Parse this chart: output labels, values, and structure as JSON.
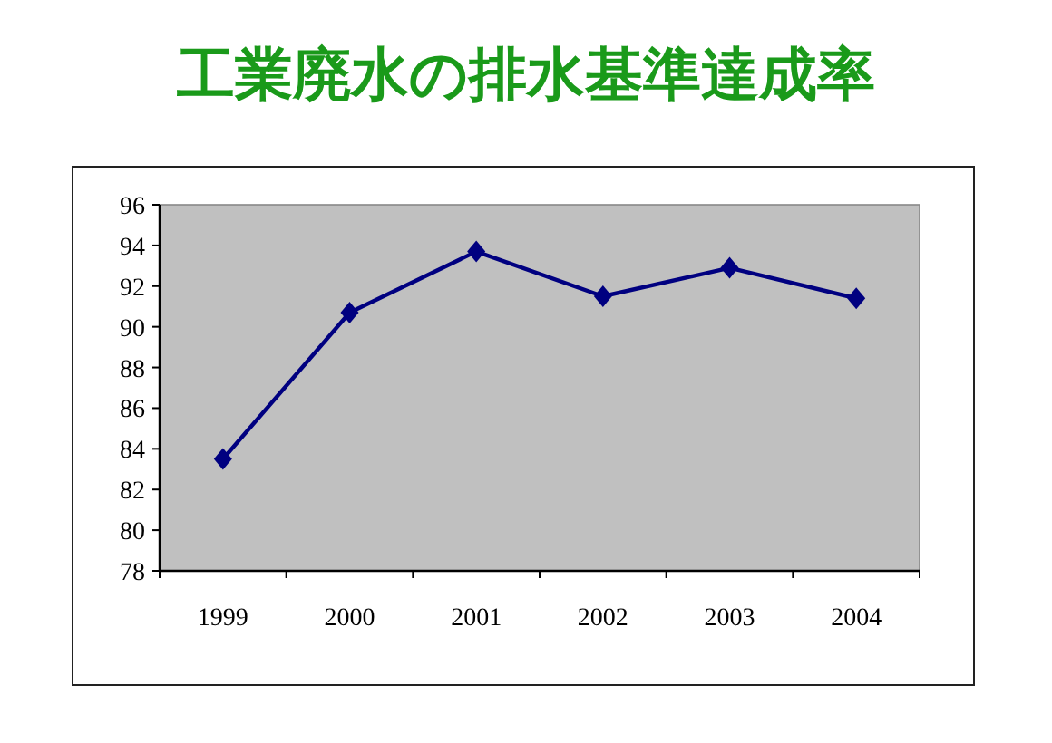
{
  "chart_data": {
    "type": "line",
    "title": "工業廃水の排水基準達成率",
    "categories": [
      "1999",
      "2000",
      "2001",
      "2002",
      "2003",
      "2004"
    ],
    "values": [
      83.5,
      90.7,
      93.7,
      91.5,
      92.9,
      91.4
    ],
    "color": "#000080",
    "marker": "diamond",
    "line_style": "solid",
    "ylim": [
      78,
      96
    ],
    "yticks": [
      78,
      80,
      82,
      84,
      86,
      88,
      90,
      92,
      94,
      96
    ]
  }
}
